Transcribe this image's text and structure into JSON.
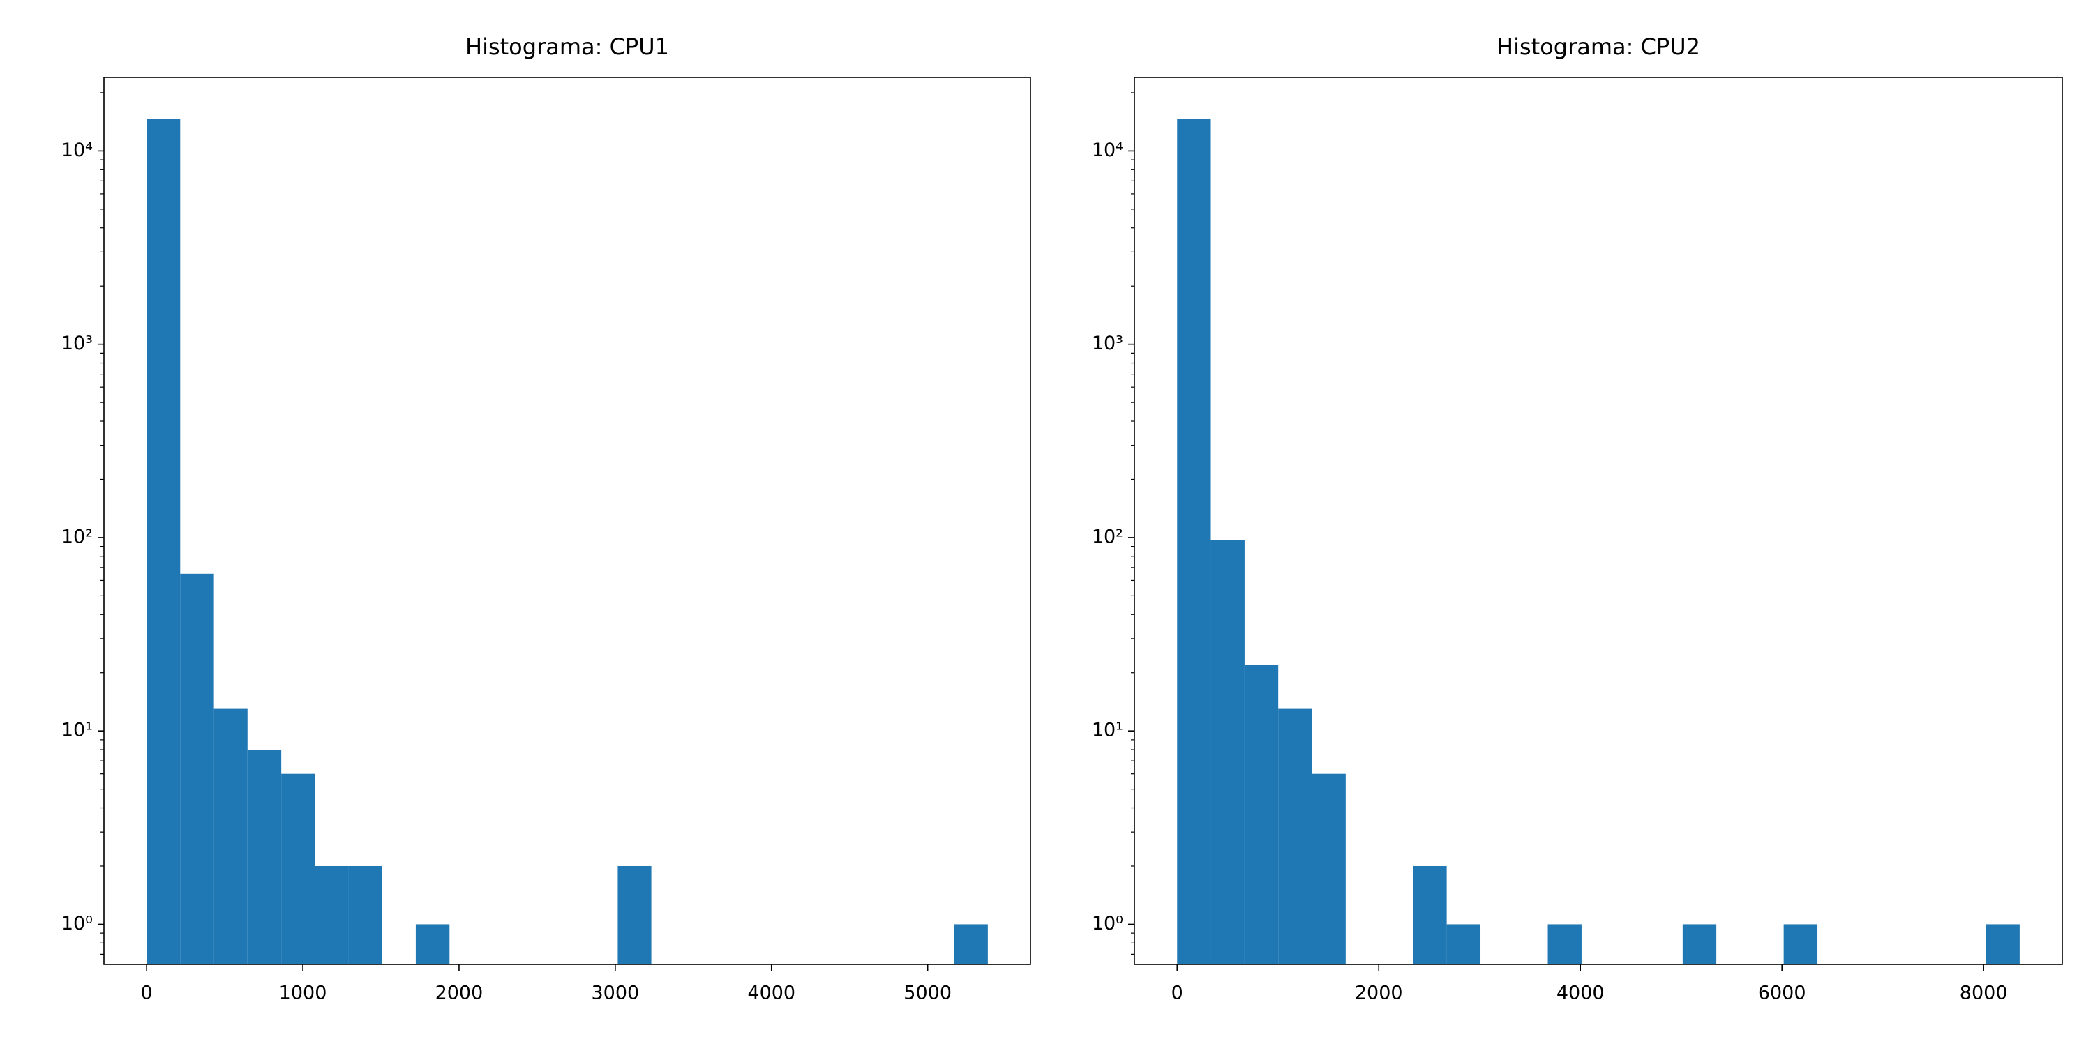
{
  "chart_data": [
    {
      "type": "histogram",
      "title": "Histograma: CPU1",
      "color": "#1f77b4",
      "log_y": true,
      "bins": [
        0,
        215,
        431,
        646,
        862,
        1077,
        1292,
        1508,
        1723,
        1939,
        2154,
        2369,
        2585,
        2800,
        3016,
        3231,
        3446,
        3662,
        3877,
        4093,
        4308,
        4523,
        4739,
        4954,
        5170,
        5385
      ],
      "values": [
        14650,
        65,
        13,
        8,
        6,
        2,
        2,
        0,
        1,
        0,
        0,
        0,
        0,
        0,
        2,
        0,
        0,
        0,
        0,
        0,
        0,
        0,
        0,
        0,
        1
      ],
      "xlim": [
        -273,
        5658
      ],
      "xticks": [
        0,
        1000,
        2000,
        3000,
        4000,
        5000
      ],
      "ylim": [
        0.62,
        24000
      ],
      "yticks": [
        {
          "value": 1,
          "label": "10⁰"
        },
        {
          "value": 10,
          "label": "10¹"
        },
        {
          "value": 100,
          "label": "10²"
        },
        {
          "value": 1000,
          "label": "10³"
        },
        {
          "value": 10000,
          "label": "10⁴"
        }
      ]
    },
    {
      "type": "histogram",
      "title": "Histograma: CPU2",
      "color": "#1f77b4",
      "log_y": true,
      "bins": [
        0,
        334,
        669,
        1003,
        1337,
        1672,
        2006,
        2340,
        2674,
        3009,
        3343,
        3677,
        4012,
        4346,
        4680,
        5015,
        5349,
        5683,
        6017,
        6352,
        6686,
        7020,
        7355,
        7689,
        8023,
        8358
      ],
      "values": [
        14650,
        97,
        22,
        13,
        6,
        0,
        0,
        2,
        1,
        0,
        0,
        1,
        0,
        0,
        0,
        1,
        0,
        0,
        1,
        0,
        0,
        0,
        0,
        0,
        1
      ],
      "xlim": [
        -424,
        8781
      ],
      "xticks": [
        0,
        2000,
        4000,
        6000,
        8000
      ],
      "ylim": [
        0.62,
        24000
      ],
      "yticks": [
        {
          "value": 1,
          "label": "10⁰"
        },
        {
          "value": 10,
          "label": "10¹"
        },
        {
          "value": 100,
          "label": "10²"
        },
        {
          "value": 1000,
          "label": "10³"
        },
        {
          "value": 10000,
          "label": "10⁴"
        }
      ]
    }
  ]
}
